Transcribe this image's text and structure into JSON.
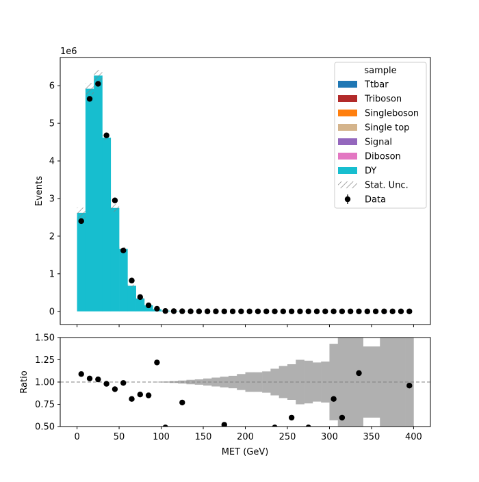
{
  "chart_data": {
    "type": "bar",
    "xlabel": "MET (GeV)",
    "x_ticks": [
      0,
      50,
      100,
      150,
      200,
      250,
      300,
      350,
      400
    ],
    "xlim": [
      -20,
      420
    ],
    "bin_edges": [
      0,
      10,
      20,
      30,
      40,
      50,
      60,
      70,
      80,
      90,
      100,
      110,
      120,
      130,
      140,
      150,
      160,
      170,
      180,
      190,
      200,
      210,
      220,
      230,
      240,
      250,
      260,
      270,
      280,
      290,
      300,
      310,
      320,
      330,
      340,
      350,
      360,
      370,
      380,
      390,
      400
    ],
    "main": {
      "ylabel": "Events",
      "scale_label": "1e6",
      "ylim": [
        -0.35,
        6.75
      ],
      "y_ticks": [
        0,
        1,
        2,
        3,
        4,
        5,
        6
      ],
      "stack_series": [
        {
          "name": "Ttbar",
          "color": "#1f77b4",
          "values": []
        },
        {
          "name": "Triboson",
          "color": "#b22a2a",
          "values": []
        },
        {
          "name": "Singleboson",
          "color": "#ff7f0e",
          "values": []
        },
        {
          "name": "Single top",
          "color": "#d4b48c",
          "values": []
        },
        {
          "name": "Signal",
          "color": "#9467bd",
          "values": []
        },
        {
          "name": "Diboson",
          "color": "#e377c2",
          "values": []
        },
        {
          "name": "DY",
          "color": "#17becf",
          "values": [
            2.62,
            5.92,
            6.27,
            4.62,
            2.75,
            1.66,
            0.68,
            0.34,
            0.16,
            0.06,
            0.02,
            0.008,
            0.004,
            0.002,
            0.001,
            0.0005,
            0.0003,
            0.0002,
            0.0001,
            0.0001,
            0.0001,
            0.0001,
            0.0001,
            0.0001,
            0.0001,
            0.0001,
            0.0001,
            0.0001,
            0.0001,
            0.0001,
            0.0001,
            0.0001,
            0.0001,
            0.0001,
            0.0001,
            0.0001,
            0.0001,
            0.0001,
            0.0001,
            0.0001
          ]
        }
      ],
      "stat_unc": [
        0.14,
        0.15,
        0.15,
        0.06,
        0.1,
        0.05,
        0.03,
        0.01,
        0.01,
        0,
        0,
        0,
        0,
        0,
        0,
        0,
        0,
        0,
        0,
        0,
        0,
        0,
        0,
        0,
        0,
        0,
        0,
        0,
        0,
        0,
        0,
        0,
        0,
        0,
        0,
        0,
        0,
        0,
        0,
        0
      ],
      "data_series": {
        "name": "Data",
        "x": [
          5,
          15,
          25,
          35,
          45,
          55,
          65,
          75,
          85,
          95,
          105,
          115,
          125,
          135,
          145,
          155,
          165,
          175,
          185,
          195,
          205,
          215,
          225,
          235,
          245,
          255,
          265,
          275,
          285,
          295,
          305,
          315,
          325,
          335,
          345,
          355,
          365,
          375,
          385,
          395
        ],
        "y": [
          2.4,
          5.65,
          6.05,
          4.68,
          2.95,
          1.62,
          0.82,
          0.38,
          0.16,
          0.07,
          0.01,
          0.005,
          0.003,
          0.001,
          0.001,
          0.0005,
          0.0003,
          0.0002,
          0.0001,
          0.0001,
          0.0001,
          0.0001,
          0.0001,
          0.0001,
          0.0001,
          0.0001,
          0.0001,
          0.0001,
          0.0001,
          0.0001,
          0.0001,
          0.0001,
          0.0001,
          0.0001,
          0.0001,
          0.0001,
          0.0001,
          0.0001,
          0.0001,
          0.0001
        ]
      },
      "legend": {
        "title": "sample",
        "position": "upper right",
        "entries": [
          {
            "label": "Ttbar",
            "kind": "patch",
            "color": "#1f77b4"
          },
          {
            "label": "Triboson",
            "kind": "patch",
            "color": "#b22a2a"
          },
          {
            "label": "Singleboson",
            "kind": "patch",
            "color": "#ff7f0e"
          },
          {
            "label": "Single top",
            "kind": "patch",
            "color": "#d4b48c"
          },
          {
            "label": "Signal",
            "kind": "patch",
            "color": "#9467bd"
          },
          {
            "label": "Diboson",
            "kind": "patch",
            "color": "#e377c2"
          },
          {
            "label": "DY",
            "kind": "patch",
            "color": "#17becf"
          },
          {
            "label": "Stat. Unc.",
            "kind": "hatch",
            "color": "#808080"
          },
          {
            "label": "Data",
            "kind": "marker",
            "color": "#000000"
          }
        ]
      }
    },
    "ratio": {
      "ylabel": "Ratio",
      "ylim": [
        0.5,
        1.5
      ],
      "y_ticks": [
        0.5,
        0.75,
        1.0,
        1.25,
        1.5
      ],
      "y_tick_labels": [
        "0.50",
        "0.75",
        "1.00",
        "1.25",
        "1.50"
      ],
      "reference_line": 1.0,
      "unc_band_color": "#b0b0b0",
      "unc_band": [
        0,
        0,
        0,
        0,
        0,
        0,
        0,
        0,
        0,
        0.003,
        0.006,
        0.01,
        0.017,
        0.025,
        0.03,
        0.04,
        0.05,
        0.06,
        0.07,
        0.09,
        0.11,
        0.11,
        0.12,
        0.15,
        0.18,
        0.2,
        0.25,
        0.24,
        0.22,
        0.23,
        0.43,
        0.53,
        0.6,
        0.5,
        0.4,
        0.4,
        0.7,
        0.7,
        0.5,
        0.5
      ],
      "points": {
        "x": [
          5,
          15,
          25,
          35,
          45,
          55,
          65,
          75,
          85,
          95,
          105,
          125,
          175,
          235,
          255,
          275,
          305,
          315,
          335,
          395
        ],
        "y": [
          1.09,
          1.04,
          1.03,
          0.98,
          0.92,
          0.99,
          0.81,
          0.86,
          0.85,
          1.22,
          0.49,
          0.77,
          0.52,
          0.49,
          0.6,
          0.49,
          0.81,
          0.6,
          1.1,
          0.96
        ]
      }
    }
  }
}
